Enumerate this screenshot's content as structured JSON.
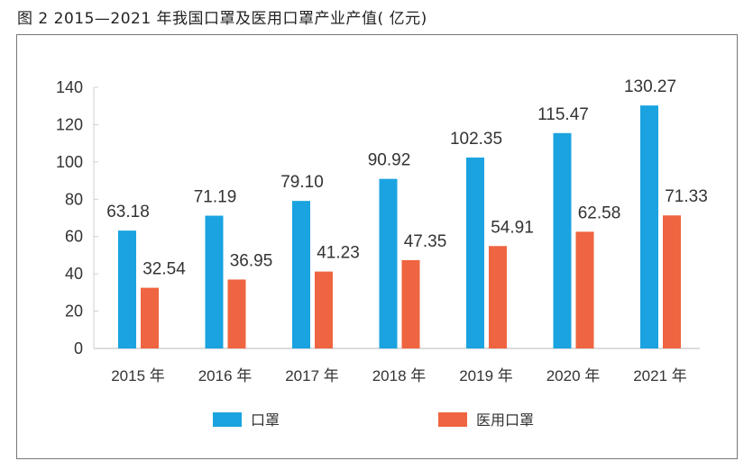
{
  "title": "图 2   2015—2021 年我国口罩及医用口罩产业产值( 亿元)",
  "colors": {
    "mask": "#1aa3e0",
    "medical": "#ef6441",
    "axis": "#cccccc",
    "text": "#333333"
  },
  "chart_data": {
    "type": "bar",
    "title": "图 2   2015—2021 年我国口罩及医用口罩产业产值( 亿元)",
    "xlabel": "",
    "ylabel": "",
    "ylim": [
      0,
      140
    ],
    "yticks": [
      0,
      20,
      40,
      60,
      80,
      100,
      120,
      140
    ],
    "grid": false,
    "legend_position": "bottom",
    "categories": [
      "2015 年",
      "2016 年",
      "2017 年",
      "2018 年",
      "2019 年",
      "2020 年",
      "2021 年"
    ],
    "series": [
      {
        "name": "口罩",
        "color": "#1aa3e0",
        "values": [
          63.18,
          71.19,
          79.1,
          90.92,
          102.35,
          115.47,
          130.27
        ],
        "labels": [
          "63.18",
          "71.19",
          "79.10",
          "90.92",
          "102.35",
          "115.47",
          "130.27"
        ]
      },
      {
        "name": "医用口罩",
        "color": "#ef6441",
        "values": [
          32.54,
          36.95,
          41.23,
          47.35,
          54.91,
          62.58,
          71.33
        ],
        "labels": [
          "32.54",
          "36.95",
          "41.23",
          "47.35",
          "54.91",
          "62.58",
          "71.33"
        ]
      }
    ]
  }
}
